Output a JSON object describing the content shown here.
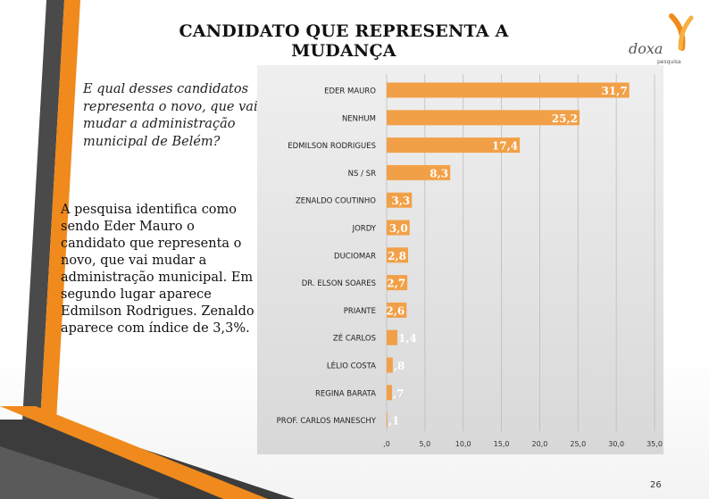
{
  "slide": {
    "title": "CANDIDATO QUE REPRESENTA A MUDANÇA",
    "question": "E qual desses candidatos representa o novo, que vai mudar a administração municipal de Belém?",
    "summary": "A pesquisa identifica como sendo Eder Mauro o candidato que representa o novo, que vai mudar a administração municipal. Em segundo lugar aparece Edmilson Rodrigues. Zenaldo aparece com índice de 3,3%.",
    "page_number": "26",
    "logo_text": "doxa",
    "logo_subtext": "pesquisa"
  },
  "colors": {
    "bar": "#F2A047",
    "chart_bg": "#E4E4E4",
    "stripe_dark": "#4A4A4A",
    "stripe_orange": "#F08A1C"
  },
  "chart_data": {
    "type": "bar",
    "orientation": "horizontal",
    "categories": [
      "EDER MAURO",
      "NENHUM",
      "EDMILSON RODRIGUES",
      "NS / SR",
      "ZENALDO COUTINHO",
      "JORDY",
      "DUCIOMAR",
      "DR. ELSON SOARES",
      "PRIANTE",
      "ZÉ CARLOS",
      "LÉLIO COSTA",
      "REGINA BARATA",
      "PROF. CARLOS MANESCHY"
    ],
    "values": [
      31.7,
      25.2,
      17.4,
      8.3,
      3.3,
      3.0,
      2.8,
      2.7,
      2.6,
      1.4,
      0.8,
      0.7,
      0.1
    ],
    "value_labels": [
      "31,7",
      "25,2",
      "17,4",
      "8,3",
      "3,3",
      "3,0",
      "2,8",
      "2,7",
      "2,6",
      "1,4",
      ",8",
      ",7",
      ",1"
    ],
    "xlim": [
      0,
      35
    ],
    "xticks": [
      ",0",
      "5,0",
      "10,0",
      "15,0",
      "20,0",
      "25,0",
      "30,0",
      "35,0"
    ],
    "grid": true
  }
}
